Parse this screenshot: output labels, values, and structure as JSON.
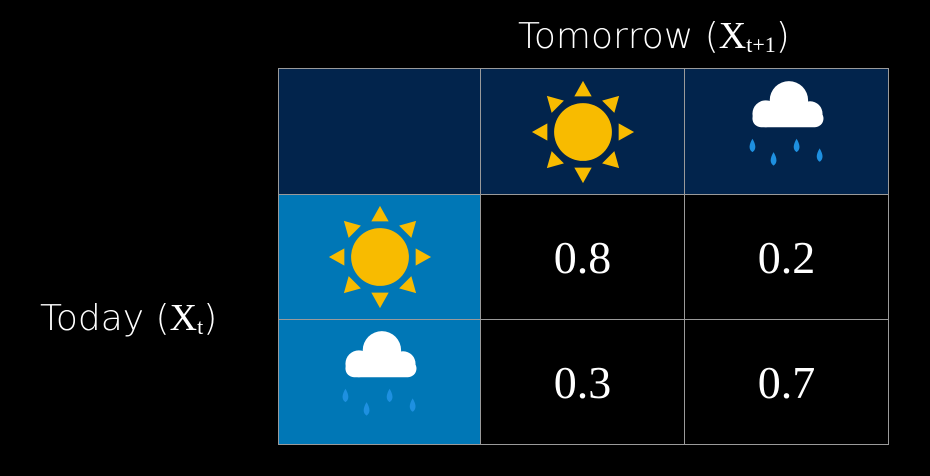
{
  "labels": {
    "columns_title": "Tomorrow (",
    "columns_var": "X",
    "columns_sub": "t+1",
    "columns_close": ")",
    "rows_title": "Today (",
    "rows_var": "X",
    "rows_sub": "t",
    "rows_close": ")"
  },
  "columns": [
    {
      "icon": "sun-icon"
    },
    {
      "icon": "rain-cloud-icon"
    }
  ],
  "rows": [
    {
      "icon": "sun-icon",
      "values": [
        "0.8",
        "0.2"
      ]
    },
    {
      "icon": "rain-cloud-icon",
      "values": [
        "0.3",
        "0.7"
      ]
    }
  ],
  "colors": {
    "header": "#02244c",
    "row_header": "#0077b6",
    "sun": "#f8bb00",
    "rain": "#1e90e0",
    "cloud": "#ffffff"
  }
}
